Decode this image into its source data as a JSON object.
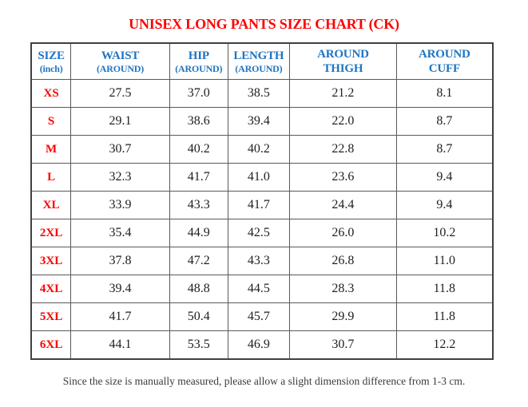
{
  "title": "UNISEX LONG PANTS SIZE CHART (CK)",
  "footer_note": "Since the size is manually measured, please allow a slight dimension difference from 1-3 cm.",
  "colors": {
    "title_red": "#fe0000",
    "header_blue": "#1e74c2",
    "size_label_red": "#fe0000",
    "value_text": "#1e1e1e",
    "grid_border": "#595959",
    "outer_border": "#404040"
  },
  "table": {
    "columns": [
      {
        "line1": "SIZE",
        "line2": "(inch)"
      },
      {
        "line1": "WAIST",
        "line2": "(AROUND)"
      },
      {
        "line1": "HIP",
        "line2": "(AROUND)"
      },
      {
        "line1": "LENGTH",
        "line2": "(AROUND)"
      },
      {
        "line1": "AROUND",
        "line2": "THIGH"
      },
      {
        "line1": "AROUND",
        "line2": "CUFF"
      }
    ],
    "rows": [
      {
        "size": "XS",
        "values": [
          "27.5",
          "37.0",
          "38.5",
          "21.2",
          "8.1"
        ]
      },
      {
        "size": "S",
        "values": [
          "29.1",
          "38.6",
          "39.4",
          "22.0",
          "8.7"
        ]
      },
      {
        "size": "M",
        "values": [
          "30.7",
          "40.2",
          "40.2",
          "22.8",
          "8.7"
        ]
      },
      {
        "size": "L",
        "values": [
          "32.3",
          "41.7",
          "41.0",
          "23.6",
          "9.4"
        ]
      },
      {
        "size": "XL",
        "values": [
          "33.9",
          "43.3",
          "41.7",
          "24.4",
          "9.4"
        ]
      },
      {
        "size": "2XL",
        "values": [
          "35.4",
          "44.9",
          "42.5",
          "26.0",
          "10.2"
        ]
      },
      {
        "size": "3XL",
        "values": [
          "37.8",
          "47.2",
          "43.3",
          "26.8",
          "11.0"
        ]
      },
      {
        "size": "4XL",
        "values": [
          "39.4",
          "48.8",
          "44.5",
          "28.3",
          "11.8"
        ]
      },
      {
        "size": "5XL",
        "values": [
          "41.7",
          "50.4",
          "45.7",
          "29.9",
          "11.8"
        ]
      },
      {
        "size": "6XL",
        "values": [
          "44.1",
          "53.5",
          "46.9",
          "30.7",
          "12.2"
        ]
      }
    ]
  }
}
